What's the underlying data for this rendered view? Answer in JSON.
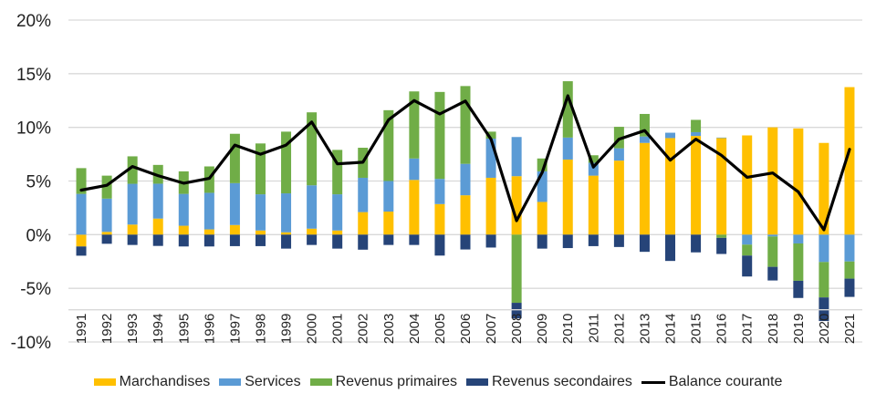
{
  "chart_data": {
    "type": "bar",
    "subtype": "stacked bar with line overlay",
    "title": "",
    "xlabel": "",
    "ylabel": "",
    "ylim": [
      -10,
      20
    ],
    "yticks": [
      20,
      15,
      10,
      5,
      0,
      -5,
      -10
    ],
    "ytick_labels": [
      "20%",
      "15%",
      "10%",
      "5%",
      "0%",
      "-5%",
      "-10%"
    ],
    "x_axis_crossing": -7,
    "grid": true,
    "legend_position": "bottom",
    "categories": [
      "1991",
      "1992",
      "1993",
      "1994",
      "1995",
      "1996",
      "1997",
      "1998",
      "1999",
      "2000",
      "2001",
      "2002",
      "2003",
      "2004",
      "2005",
      "2006",
      "2007",
      "2008",
      "2009",
      "2010",
      "2011",
      "2012",
      "2013",
      "2014",
      "2015",
      "2016",
      "2017",
      "2018",
      "2019",
      "2020",
      "2021"
    ],
    "series": [
      {
        "name": "Marchandises",
        "type": "bar",
        "color": "#FFC000",
        "values": [
          -1.1,
          0.26,
          0.94,
          1.5,
          0.83,
          0.49,
          0.9,
          0.39,
          0.22,
          0.56,
          0.39,
          2.1,
          2.15,
          5.1,
          2.85,
          3.67,
          5.3,
          5.45,
          3.05,
          7.0,
          5.5,
          6.9,
          8.55,
          9.0,
          9.2,
          9.0,
          9.25,
          10.0,
          9.9,
          8.55,
          13.75
        ]
      },
      {
        "name": "Services",
        "type": "bar",
        "color": "#5B9BD5",
        "values": [
          3.8,
          3.1,
          3.8,
          3.25,
          2.97,
          3.41,
          3.9,
          3.37,
          3.63,
          4.04,
          3.37,
          3.2,
          2.85,
          2.0,
          2.35,
          2.93,
          3.65,
          3.65,
          2.85,
          2.05,
          1.2,
          1.15,
          0.6,
          0.5,
          0.35,
          0.05,
          -0.93,
          -0.17,
          -0.82,
          -2.55,
          -2.5
        ]
      },
      {
        "name": "Revenus primaires",
        "type": "bar",
        "color": "#70AD47",
        "values": [
          2.4,
          2.14,
          2.56,
          1.75,
          2.1,
          2.46,
          4.6,
          4.74,
          5.75,
          6.8,
          4.14,
          2.8,
          6.6,
          6.25,
          8.1,
          7.25,
          0.65,
          -6.35,
          1.2,
          5.25,
          0.7,
          2.0,
          2.1,
          0.0,
          1.15,
          -0.3,
          -1.02,
          -2.83,
          -3.48,
          -3.3,
          -1.6
        ]
      },
      {
        "name": "Revenus secondaires",
        "type": "bar",
        "color": "#264478",
        "values": [
          -0.86,
          -0.85,
          -0.96,
          -1.05,
          -1.1,
          -1.1,
          -1.07,
          -1.07,
          -1.3,
          -0.96,
          -1.3,
          -1.4,
          -0.96,
          -0.96,
          -1.95,
          -1.38,
          -1.2,
          -1.45,
          -1.3,
          -1.25,
          -1.07,
          -1.15,
          -1.6,
          -2.45,
          -1.65,
          -1.5,
          -1.95,
          -1.27,
          -1.6,
          -2.2,
          -1.7
        ]
      },
      {
        "name": "Balance courante",
        "type": "line",
        "color": "#000000",
        "values": [
          4.15,
          4.6,
          6.35,
          5.5,
          4.8,
          5.25,
          8.35,
          7.5,
          8.35,
          10.5,
          6.6,
          6.75,
          10.7,
          12.5,
          11.25,
          12.45,
          8.9,
          1.3,
          5.8,
          12.95,
          6.3,
          8.9,
          9.7,
          6.95,
          8.9,
          7.4,
          5.35,
          5.75,
          4.0,
          0.45,
          7.95
        ]
      }
    ]
  },
  "legend": {
    "items": [
      {
        "label": "Marchandises",
        "kind": "swatch",
        "color": "#FFC000"
      },
      {
        "label": "Services",
        "kind": "swatch",
        "color": "#5B9BD5"
      },
      {
        "label": "Revenus primaires",
        "kind": "swatch",
        "color": "#70AD47"
      },
      {
        "label": "Revenus secondaires",
        "kind": "swatch",
        "color": "#264478"
      },
      {
        "label": "Balance courante",
        "kind": "line",
        "color": "#000000"
      }
    ]
  }
}
